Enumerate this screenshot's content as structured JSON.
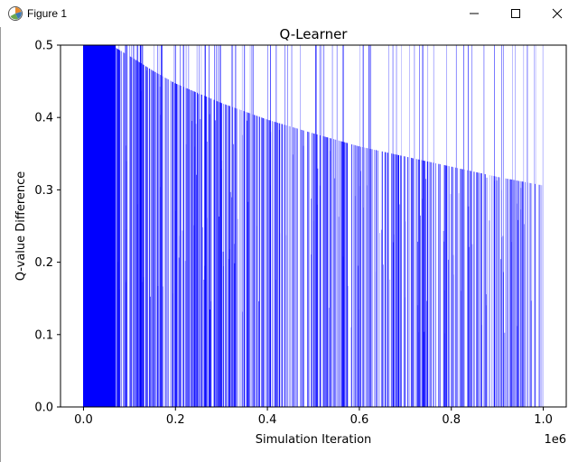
{
  "window": {
    "title": "Figure 1",
    "icon": "matplotlib-figure-icon",
    "controls": [
      "minimize-icon",
      "maximize-icon",
      "close-icon"
    ]
  },
  "chart_data": {
    "type": "bar",
    "title": "Q-Learner",
    "xlabel": "Simulation Iteration",
    "ylabel": "Q-value Difference",
    "x_offset_label": "1e6",
    "xlim": [
      -50000,
      1050000
    ],
    "ylim": [
      0,
      0.5
    ],
    "xticks": [
      0,
      200000,
      400000,
      600000,
      800000,
      1000000
    ],
    "xtick_labels": [
      "0.0",
      "0.2",
      "0.4",
      "0.6",
      "0.8",
      "1.0"
    ],
    "yticks": [
      0,
      0.1,
      0.2,
      0.3,
      0.4,
      0.5
    ],
    "ytick_labels": [
      "0.0",
      "0.1",
      "0.2",
      "0.3",
      "0.4",
      "0.5"
    ],
    "grid": false,
    "color": "#0000ff",
    "envelope": {
      "x": [
        0,
        60000,
        100000,
        150000,
        200000,
        300000,
        400000,
        500000,
        600000,
        700000,
        800000,
        900000,
        1000000
      ],
      "y": [
        0.5,
        0.5,
        0.485,
        0.465,
        0.447,
        0.42,
        0.397,
        0.378,
        0.36,
        0.346,
        0.332,
        0.318,
        0.306
      ]
    },
    "series": [
      {
        "x_start": 0,
        "x_end": 1000000,
        "density": "very dense near x=0, thinning toward x=1e6",
        "solid_region_x_end": 70000
      }
    ]
  }
}
